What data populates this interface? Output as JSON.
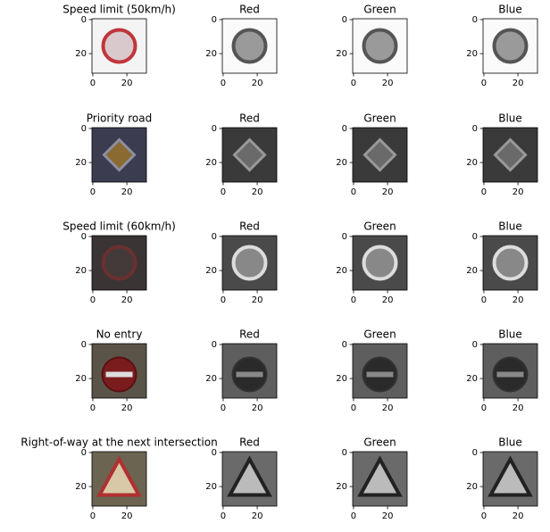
{
  "chart_data": [
    {
      "type": "image",
      "title": "Speed limit (50km/h)",
      "xlim": [
        -0.5,
        31.5
      ],
      "ylim": [
        31.5,
        -0.5
      ],
      "xticks": [
        0,
        20
      ],
      "yticks": [
        0,
        20
      ]
    },
    {
      "type": "image",
      "title": "Red",
      "xlim": [
        -0.5,
        31.5
      ],
      "ylim": [
        31.5,
        -0.5
      ],
      "xticks": [
        0,
        20
      ],
      "yticks": [
        0,
        20
      ]
    },
    {
      "type": "image",
      "title": "Green",
      "xlim": [
        -0.5,
        31.5
      ],
      "ylim": [
        31.5,
        -0.5
      ],
      "xticks": [
        0,
        20
      ],
      "yticks": [
        0,
        20
      ]
    },
    {
      "type": "image",
      "title": "Blue",
      "xlim": [
        -0.5,
        31.5
      ],
      "ylim": [
        31.5,
        -0.5
      ],
      "xticks": [
        0,
        20
      ],
      "yticks": [
        0,
        20
      ]
    },
    {
      "type": "image",
      "title": "Priority road",
      "xlim": [
        -0.5,
        31.5
      ],
      "ylim": [
        31.5,
        -0.5
      ],
      "xticks": [
        0,
        20
      ],
      "yticks": [
        0,
        20
      ]
    },
    {
      "type": "image",
      "title": "Red",
      "xlim": [
        -0.5,
        31.5
      ],
      "ylim": [
        31.5,
        -0.5
      ],
      "xticks": [
        0,
        20
      ],
      "yticks": [
        0,
        20
      ]
    },
    {
      "type": "image",
      "title": "Green",
      "xlim": [
        -0.5,
        31.5
      ],
      "ylim": [
        31.5,
        -0.5
      ],
      "xticks": [
        0,
        20
      ],
      "yticks": [
        0,
        20
      ]
    },
    {
      "type": "image",
      "title": "Blue",
      "xlim": [
        -0.5,
        31.5
      ],
      "ylim": [
        31.5,
        -0.5
      ],
      "xticks": [
        0,
        20
      ],
      "yticks": [
        0,
        20
      ]
    },
    {
      "type": "image",
      "title": "Speed limit (60km/h)",
      "xlim": [
        -0.5,
        31.5
      ],
      "ylim": [
        31.5,
        -0.5
      ],
      "xticks": [
        0,
        20
      ],
      "yticks": [
        0,
        20
      ]
    },
    {
      "type": "image",
      "title": "Red",
      "xlim": [
        -0.5,
        31.5
      ],
      "ylim": [
        31.5,
        -0.5
      ],
      "xticks": [
        0,
        20
      ],
      "yticks": [
        0,
        20
      ]
    },
    {
      "type": "image",
      "title": "Green",
      "xlim": [
        -0.5,
        31.5
      ],
      "ylim": [
        31.5,
        -0.5
      ],
      "xticks": [
        0,
        20
      ],
      "yticks": [
        0,
        20
      ]
    },
    {
      "type": "image",
      "title": "Blue",
      "xlim": [
        -0.5,
        31.5
      ],
      "ylim": [
        31.5,
        -0.5
      ],
      "xticks": [
        0,
        20
      ],
      "yticks": [
        0,
        20
      ]
    },
    {
      "type": "image",
      "title": "No entry",
      "xlim": [
        -0.5,
        31.5
      ],
      "ylim": [
        31.5,
        -0.5
      ],
      "xticks": [
        0,
        20
      ],
      "yticks": [
        0,
        20
      ]
    },
    {
      "type": "image",
      "title": "Red",
      "xlim": [
        -0.5,
        31.5
      ],
      "ylim": [
        31.5,
        -0.5
      ],
      "xticks": [
        0,
        20
      ],
      "yticks": [
        0,
        20
      ]
    },
    {
      "type": "image",
      "title": "Green",
      "xlim": [
        -0.5,
        31.5
      ],
      "ylim": [
        31.5,
        -0.5
      ],
      "xticks": [
        0,
        20
      ],
      "yticks": [
        0,
        20
      ]
    },
    {
      "type": "image",
      "title": "Blue",
      "xlim": [
        -0.5,
        31.5
      ],
      "ylim": [
        31.5,
        -0.5
      ],
      "xticks": [
        0,
        20
      ],
      "yticks": [
        0,
        20
      ]
    },
    {
      "type": "image",
      "title": "Right-of-way at the next intersection",
      "xlim": [
        -0.5,
        31.5
      ],
      "ylim": [
        31.5,
        -0.5
      ],
      "xticks": [
        0,
        20
      ],
      "yticks": [
        0,
        20
      ]
    },
    {
      "type": "image",
      "title": "Red",
      "xlim": [
        -0.5,
        31.5
      ],
      "ylim": [
        31.5,
        -0.5
      ],
      "xticks": [
        0,
        20
      ],
      "yticks": [
        0,
        20
      ]
    },
    {
      "type": "image",
      "title": "Green",
      "xlim": [
        -0.5,
        31.5
      ],
      "ylim": [
        31.5,
        -0.5
      ],
      "xticks": [
        0,
        20
      ],
      "yticks": [
        0,
        20
      ]
    },
    {
      "type": "image",
      "title": "Blue",
      "xlim": [
        -0.5,
        31.5
      ],
      "ylim": [
        31.5,
        -0.5
      ],
      "xticks": [
        0,
        20
      ],
      "yticks": [
        0,
        20
      ]
    }
  ]
}
